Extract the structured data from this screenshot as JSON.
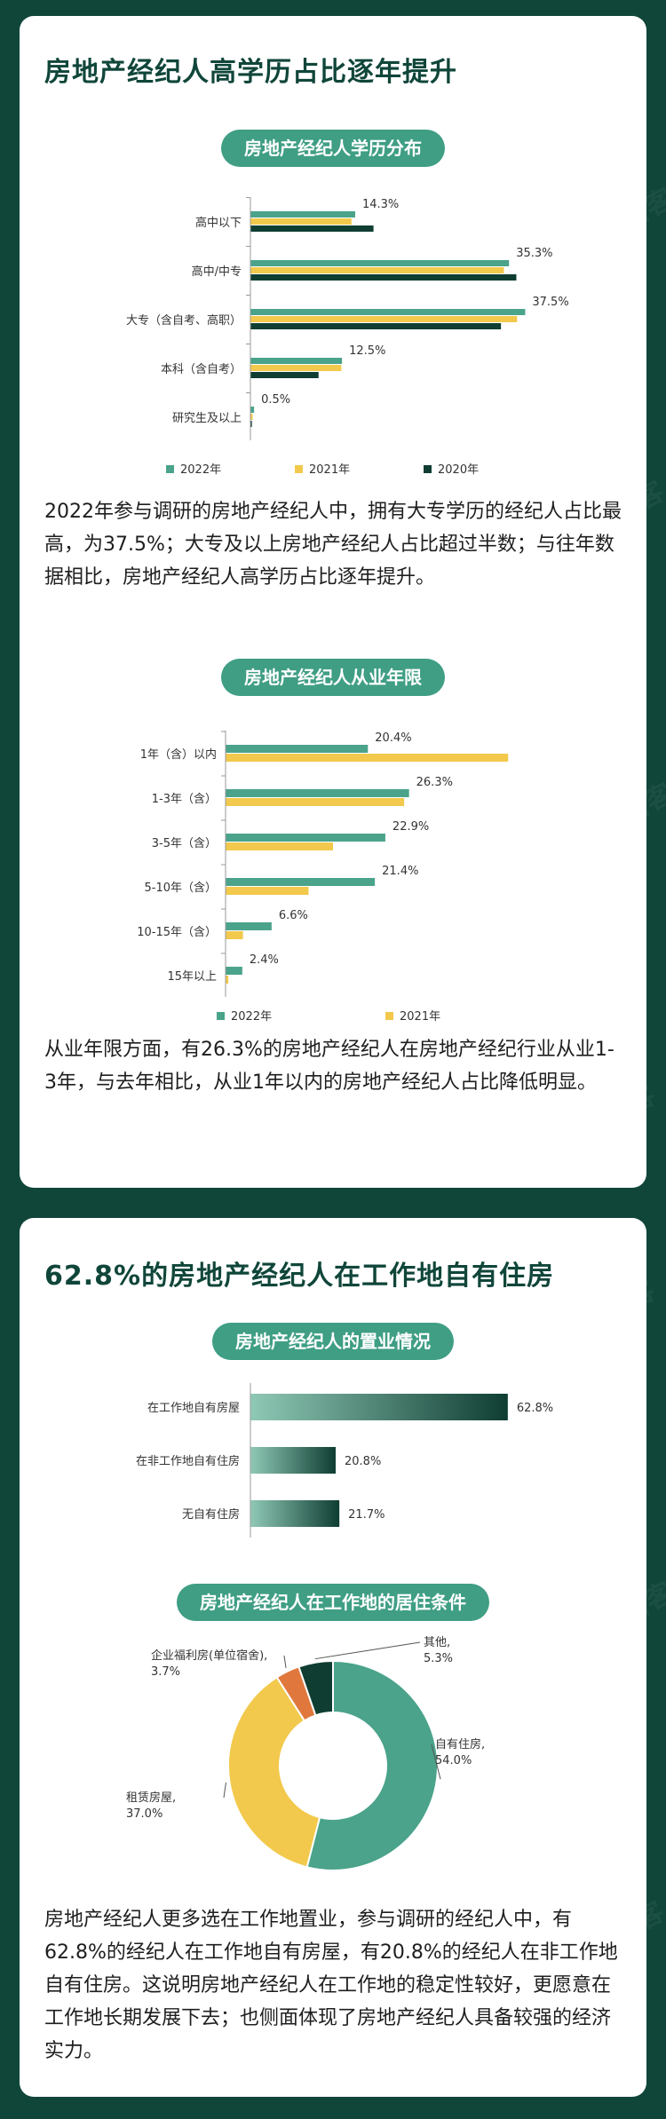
{
  "colors": {
    "background": "#10463a",
    "teal": "#4aa38a",
    "yellow": "#f2c94c",
    "dark_green": "#0f3d32",
    "pill": "#3f9e84",
    "orange": "#e0783e",
    "brown": "#b04a3a"
  },
  "watermark": "58 安居客",
  "section1": {
    "title": "房地产经纪人高学历占比逐年提升",
    "paragraph1": "2022年参与调研的房地产经纪人中，拥有大专学历的经纪人占比最高，为37.5%；大专及以上房地产经纪人占比超过半数；与往年数据相比，房地产经纪人高学历占比逐年提升。",
    "paragraph2": "从业年限方面，有26.3%的房地产经纪人在房地产经纪行业从业1-3年，与去年相比，从业1年以内的房地产经纪人占比降低明显。"
  },
  "section2": {
    "title": "62.8%的房地产经纪人在工作地自有住房",
    "paragraph": "房地产经纪人更多选在工作地置业，参与调研的经纪人中，有62.8%的经纪人在工作地自有房屋，有20.8%的经纪人在非工作地自有住房。这说明房地产经纪人在工作地的稳定性较好，更愿意在工作地长期发展下去；也侧面体现了房地产经纪人具备较强的经济实力。"
  },
  "chart_data": [
    {
      "type": "bar",
      "orientation": "horizontal",
      "title": "房地产经纪人学历分布",
      "categories": [
        "高中以下",
        "高中/中专",
        "大专（含自考、高职）",
        "本科（含自考）",
        "研究生及以上"
      ],
      "series": [
        {
          "name": "2022年",
          "values": [
            14.3,
            35.3,
            37.5,
            12.5,
            0.5
          ]
        },
        {
          "name": "2021年",
          "values": [
            13.8,
            34.6,
            36.4,
            12.4,
            0.3
          ]
        },
        {
          "name": "2020年",
          "values": [
            16.8,
            36.3,
            34.2,
            9.3,
            0.2
          ]
        }
      ],
      "labels": [
        "14.3%",
        "35.3%",
        "37.5%",
        "12.5%",
        "0.5%"
      ],
      "xlim": [
        0,
        40
      ],
      "legend": "bottom"
    },
    {
      "type": "bar",
      "orientation": "horizontal",
      "title": "房地产经纪人从业年限",
      "categories": [
        "1年（含）以内",
        "1-3年（含）",
        "3-5年（含）",
        "5-10年（含）",
        "10-15年（含）",
        "15年以上"
      ],
      "series": [
        {
          "name": "2022年",
          "values": [
            20.4,
            26.3,
            22.9,
            21.4,
            6.6,
            2.4
          ]
        },
        {
          "name": "2021年",
          "values": [
            40.5,
            25.6,
            15.4,
            11.9,
            2.5,
            0.4
          ]
        }
      ],
      "labels": [
        "20.4%",
        "26.3%",
        "22.9%",
        "21.4%",
        "6.6%",
        "2.4%"
      ],
      "xlim": [
        0,
        42
      ],
      "legend": "bottom"
    },
    {
      "type": "bar",
      "orientation": "horizontal",
      "title": "房地产经纪人的置业情况",
      "categories": [
        "在工作地自有房屋",
        "在非工作地自有住房",
        "无自有住房"
      ],
      "values": [
        62.8,
        20.8,
        21.7
      ],
      "labels": [
        "62.8%",
        "20.8%",
        "21.7%"
      ],
      "xlim": [
        0,
        65
      ]
    },
    {
      "type": "pie",
      "style": "donut",
      "title": "房地产经纪人在工作地的居住条件",
      "slices": [
        {
          "name": "自有住房",
          "value": 54.0,
          "label": "54.0%"
        },
        {
          "name": "租赁房屋",
          "value": 37.0,
          "label": "37.0%"
        },
        {
          "name": "企业福利房(单位宿舍)",
          "value": 3.7,
          "label": "3.7%"
        },
        {
          "name": "其他",
          "value": 5.3,
          "label": "5.3%"
        }
      ]
    }
  ]
}
